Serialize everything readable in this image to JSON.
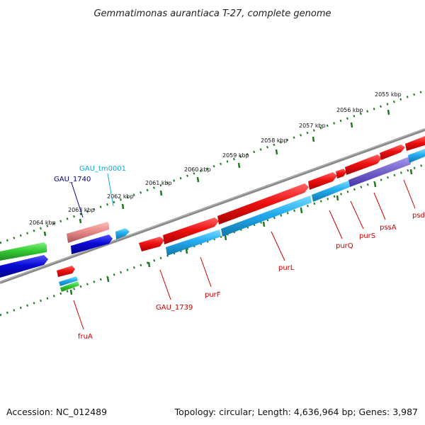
{
  "title": "Gemmatimonas aurantiaca T-27, complete genome",
  "accession": "Accession: NC_012489",
  "topology": "Topology: circular; Length: 4,636,964 bp; Genes: 3,987",
  "colors": {
    "backbone": "#7a7a7a",
    "ticks": "#1f7a1f",
    "red": "#ee1111",
    "dark_blue": "#0a0ad6",
    "cyan": "#22aaee",
    "green": "#33cc33",
    "pink": "#e88a8a",
    "purple": "#7766cc",
    "label_red": "#cc0000",
    "label_navy": "#000080",
    "label_cyan": "#11aadd"
  },
  "kbp_labels": [
    "2064 kbp",
    "2063 kbp",
    "2062 kbp",
    "2061 kbp",
    "2060 kbp",
    "2059 kbp",
    "2058 kbp",
    "2057 kbp",
    "2056 kbp",
    "2055 kbp"
  ],
  "gene_labels": {
    "gau_tm0001": "GAU_tm0001",
    "gau_1740": "GAU_1740",
    "fruA": "fruA",
    "gau_1739": "GAU_1739",
    "purF": "purF",
    "purL": "purL",
    "purQ": "purQ",
    "purS": "purS",
    "pssA": "pssA",
    "psd": "psd"
  }
}
